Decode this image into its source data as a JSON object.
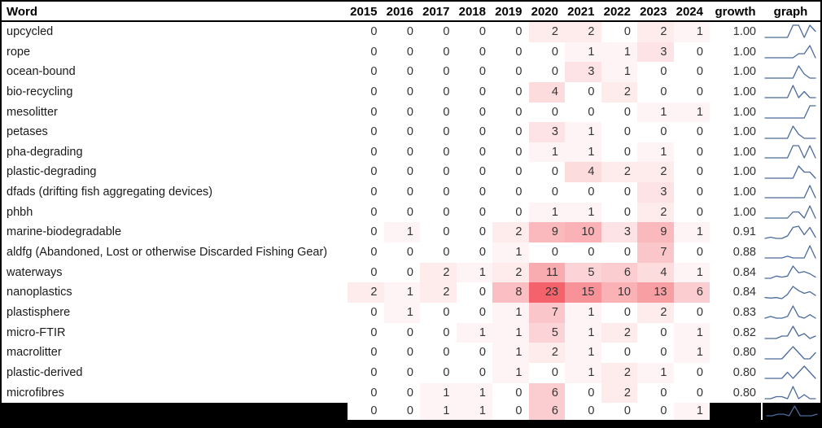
{
  "table": {
    "columns": {
      "word": "Word",
      "years": [
        "2015",
        "2016",
        "2017",
        "2018",
        "2019",
        "2020",
        "2021",
        "2022",
        "2023",
        "2024"
      ],
      "growth": "growth",
      "graph": "graph"
    },
    "heat": {
      "max": 23,
      "max_color": "#f5646c",
      "zero_color": "#ffffff"
    },
    "spark_color": "#4a6a9b",
    "rows": [
      {
        "word": "upcycled",
        "counts": [
          0,
          0,
          0,
          0,
          0,
          2,
          2,
          0,
          2,
          1
        ],
        "growth": "1.00"
      },
      {
        "word": "rope",
        "counts": [
          0,
          0,
          0,
          0,
          0,
          0,
          1,
          1,
          3,
          0
        ],
        "growth": "1.00"
      },
      {
        "word": "ocean-bound",
        "counts": [
          0,
          0,
          0,
          0,
          0,
          0,
          3,
          1,
          0,
          0
        ],
        "growth": "1.00"
      },
      {
        "word": "bio-recycling",
        "counts": [
          0,
          0,
          0,
          0,
          0,
          4,
          0,
          2,
          0,
          0
        ],
        "growth": "1.00"
      },
      {
        "word": "mesolitter",
        "counts": [
          0,
          0,
          0,
          0,
          0,
          0,
          0,
          0,
          1,
          1
        ],
        "growth": "1.00"
      },
      {
        "word": "petases",
        "counts": [
          0,
          0,
          0,
          0,
          0,
          3,
          1,
          0,
          0,
          0
        ],
        "growth": "1.00"
      },
      {
        "word": "pha-degrading",
        "counts": [
          0,
          0,
          0,
          0,
          0,
          1,
          1,
          0,
          1,
          0
        ],
        "growth": "1.00"
      },
      {
        "word": "plastic-degrading",
        "counts": [
          0,
          0,
          0,
          0,
          0,
          0,
          4,
          2,
          2,
          0
        ],
        "growth": "1.00"
      },
      {
        "word": "dfads (drifting fish aggregating devices)",
        "counts": [
          0,
          0,
          0,
          0,
          0,
          0,
          0,
          0,
          3,
          0
        ],
        "growth": "1.00"
      },
      {
        "word": "phbh",
        "counts": [
          0,
          0,
          0,
          0,
          0,
          1,
          1,
          0,
          2,
          0
        ],
        "growth": "1.00"
      },
      {
        "word": "marine-biodegradable",
        "counts": [
          0,
          1,
          0,
          0,
          2,
          9,
          10,
          3,
          9,
          1
        ],
        "growth": "0.91"
      },
      {
        "word": "aldfg (Abandoned, Lost or otherwise Discarded Fishing Gear)",
        "counts": [
          0,
          0,
          0,
          0,
          1,
          0,
          0,
          0,
          7,
          0
        ],
        "growth": "0.88"
      },
      {
        "word": "waterways",
        "counts": [
          0,
          0,
          2,
          1,
          2,
          11,
          5,
          6,
          4,
          1
        ],
        "growth": "0.84"
      },
      {
        "word": "nanoplastics",
        "counts": [
          2,
          1,
          2,
          0,
          8,
          23,
          15,
          10,
          13,
          6
        ],
        "growth": "0.84"
      },
      {
        "word": "plastisphere",
        "counts": [
          0,
          1,
          0,
          0,
          1,
          7,
          1,
          0,
          2,
          0
        ],
        "growth": "0.83"
      },
      {
        "word": "micro-FTIR",
        "counts": [
          0,
          0,
          0,
          1,
          1,
          5,
          1,
          2,
          0,
          1
        ],
        "growth": "0.82"
      },
      {
        "word": "macrolitter",
        "counts": [
          0,
          0,
          0,
          0,
          1,
          2,
          1,
          0,
          0,
          1
        ],
        "growth": "0.80"
      },
      {
        "word": "plastic-derived",
        "counts": [
          0,
          0,
          0,
          0,
          1,
          0,
          1,
          2,
          1,
          0
        ],
        "growth": "0.80"
      },
      {
        "word": "microfibres",
        "counts": [
          0,
          0,
          1,
          1,
          0,
          6,
          0,
          2,
          0,
          0
        ],
        "growth": "0.80"
      },
      {
        "word": "",
        "counts": [
          0,
          0,
          1,
          1,
          0,
          6,
          0,
          0,
          0,
          1
        ],
        "growth": "",
        "partial": true
      }
    ]
  }
}
